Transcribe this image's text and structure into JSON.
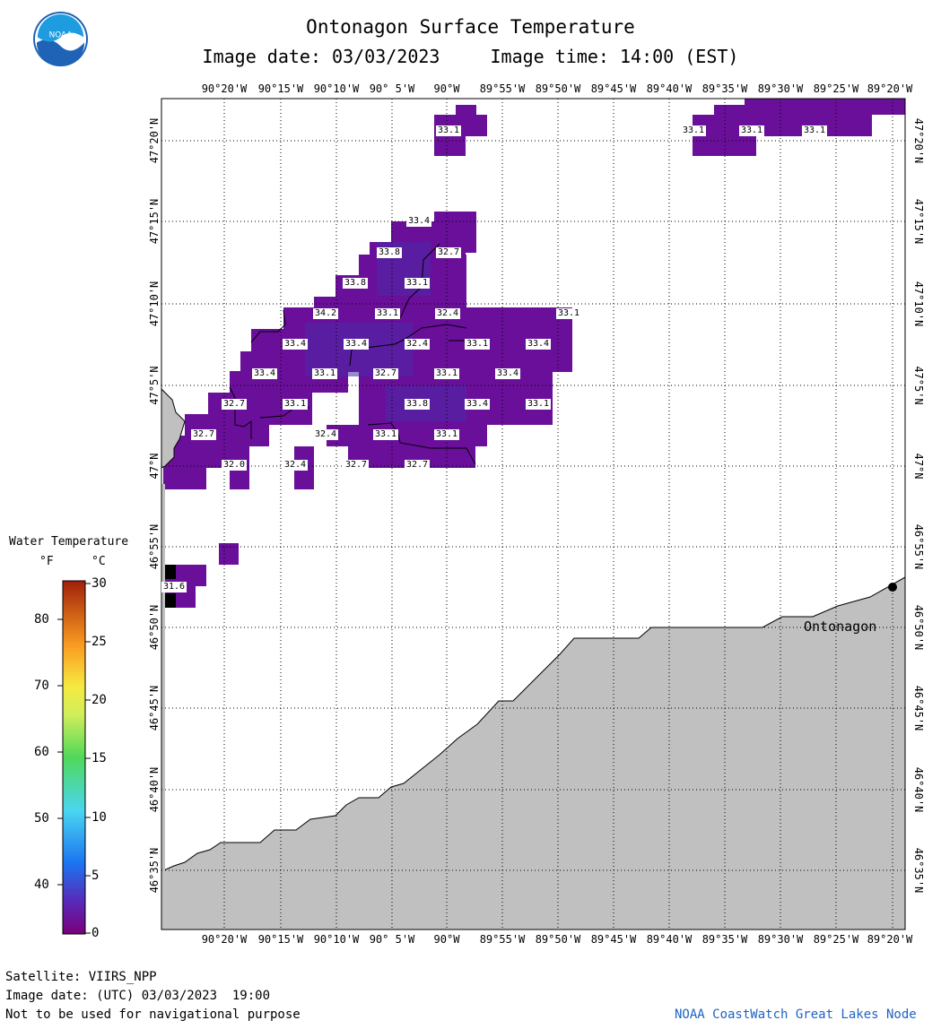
{
  "header": {
    "title": "Ontonagon Surface Temperature",
    "image_date": "Image date: 03/03/2023",
    "image_time": "Image time: 14:00 (EST)"
  },
  "map": {
    "x_ticks": [
      "90°20'W",
      "90°15'W",
      "90°10'W",
      "90° 5'W",
      "90°W",
      "89°55'W",
      "89°50'W",
      "89°45'W",
      "89°40'W",
      "89°35'W",
      "89°30'W",
      "89°25'W",
      "89°20'W"
    ],
    "y_ticks": [
      "47°20'N",
      "47°15'N",
      "47°10'N",
      "47°5'N",
      "47°N",
      "46°55'N",
      "46°50'N",
      "46°45'N",
      "46°40'N",
      "46°35'N"
    ],
    "city": "Ontonagon",
    "colors": {
      "water_temp": "#6a0f9a",
      "water_temp_cool": "#4a2aa8",
      "land": "#c0c0c0",
      "flagged": "#000000"
    },
    "temperature_labels": [
      "33.1",
      "33.1",
      "33.1",
      "33.1",
      "33.4",
      "33.8",
      "32.7",
      "33.8",
      "33.1",
      "34.2",
      "33.1",
      "32.4",
      "33.1",
      "33.4",
      "33.4",
      "32.4",
      "33.1",
      "33.4",
      "33.4",
      "33.1",
      "32.7",
      "33.1",
      "33.4",
      "32.7",
      "33.1",
      "33.8",
      "33.4",
      "33.1",
      "32.7",
      "32.4",
      "33.1",
      "33.1",
      "32.0",
      "32.4",
      "32.7",
      "32.7",
      "31.6"
    ]
  },
  "legend": {
    "title": "Water Temperature",
    "unit_f": "°F",
    "unit_c": "°C",
    "f_ticks": [
      "80",
      "70",
      "60",
      "50",
      "40"
    ],
    "c_ticks": [
      "30",
      "25",
      "20",
      "15",
      "10",
      "5",
      "0"
    ]
  },
  "footer": {
    "satellite": "Satellite: VIIRS_NPP",
    "utc_date": "Image date: (UTC) 03/03/2023  19:00",
    "disclaimer": "Not to be used for navigational purpose",
    "credit": "NOAA CoastWatch Great Lakes Node"
  }
}
